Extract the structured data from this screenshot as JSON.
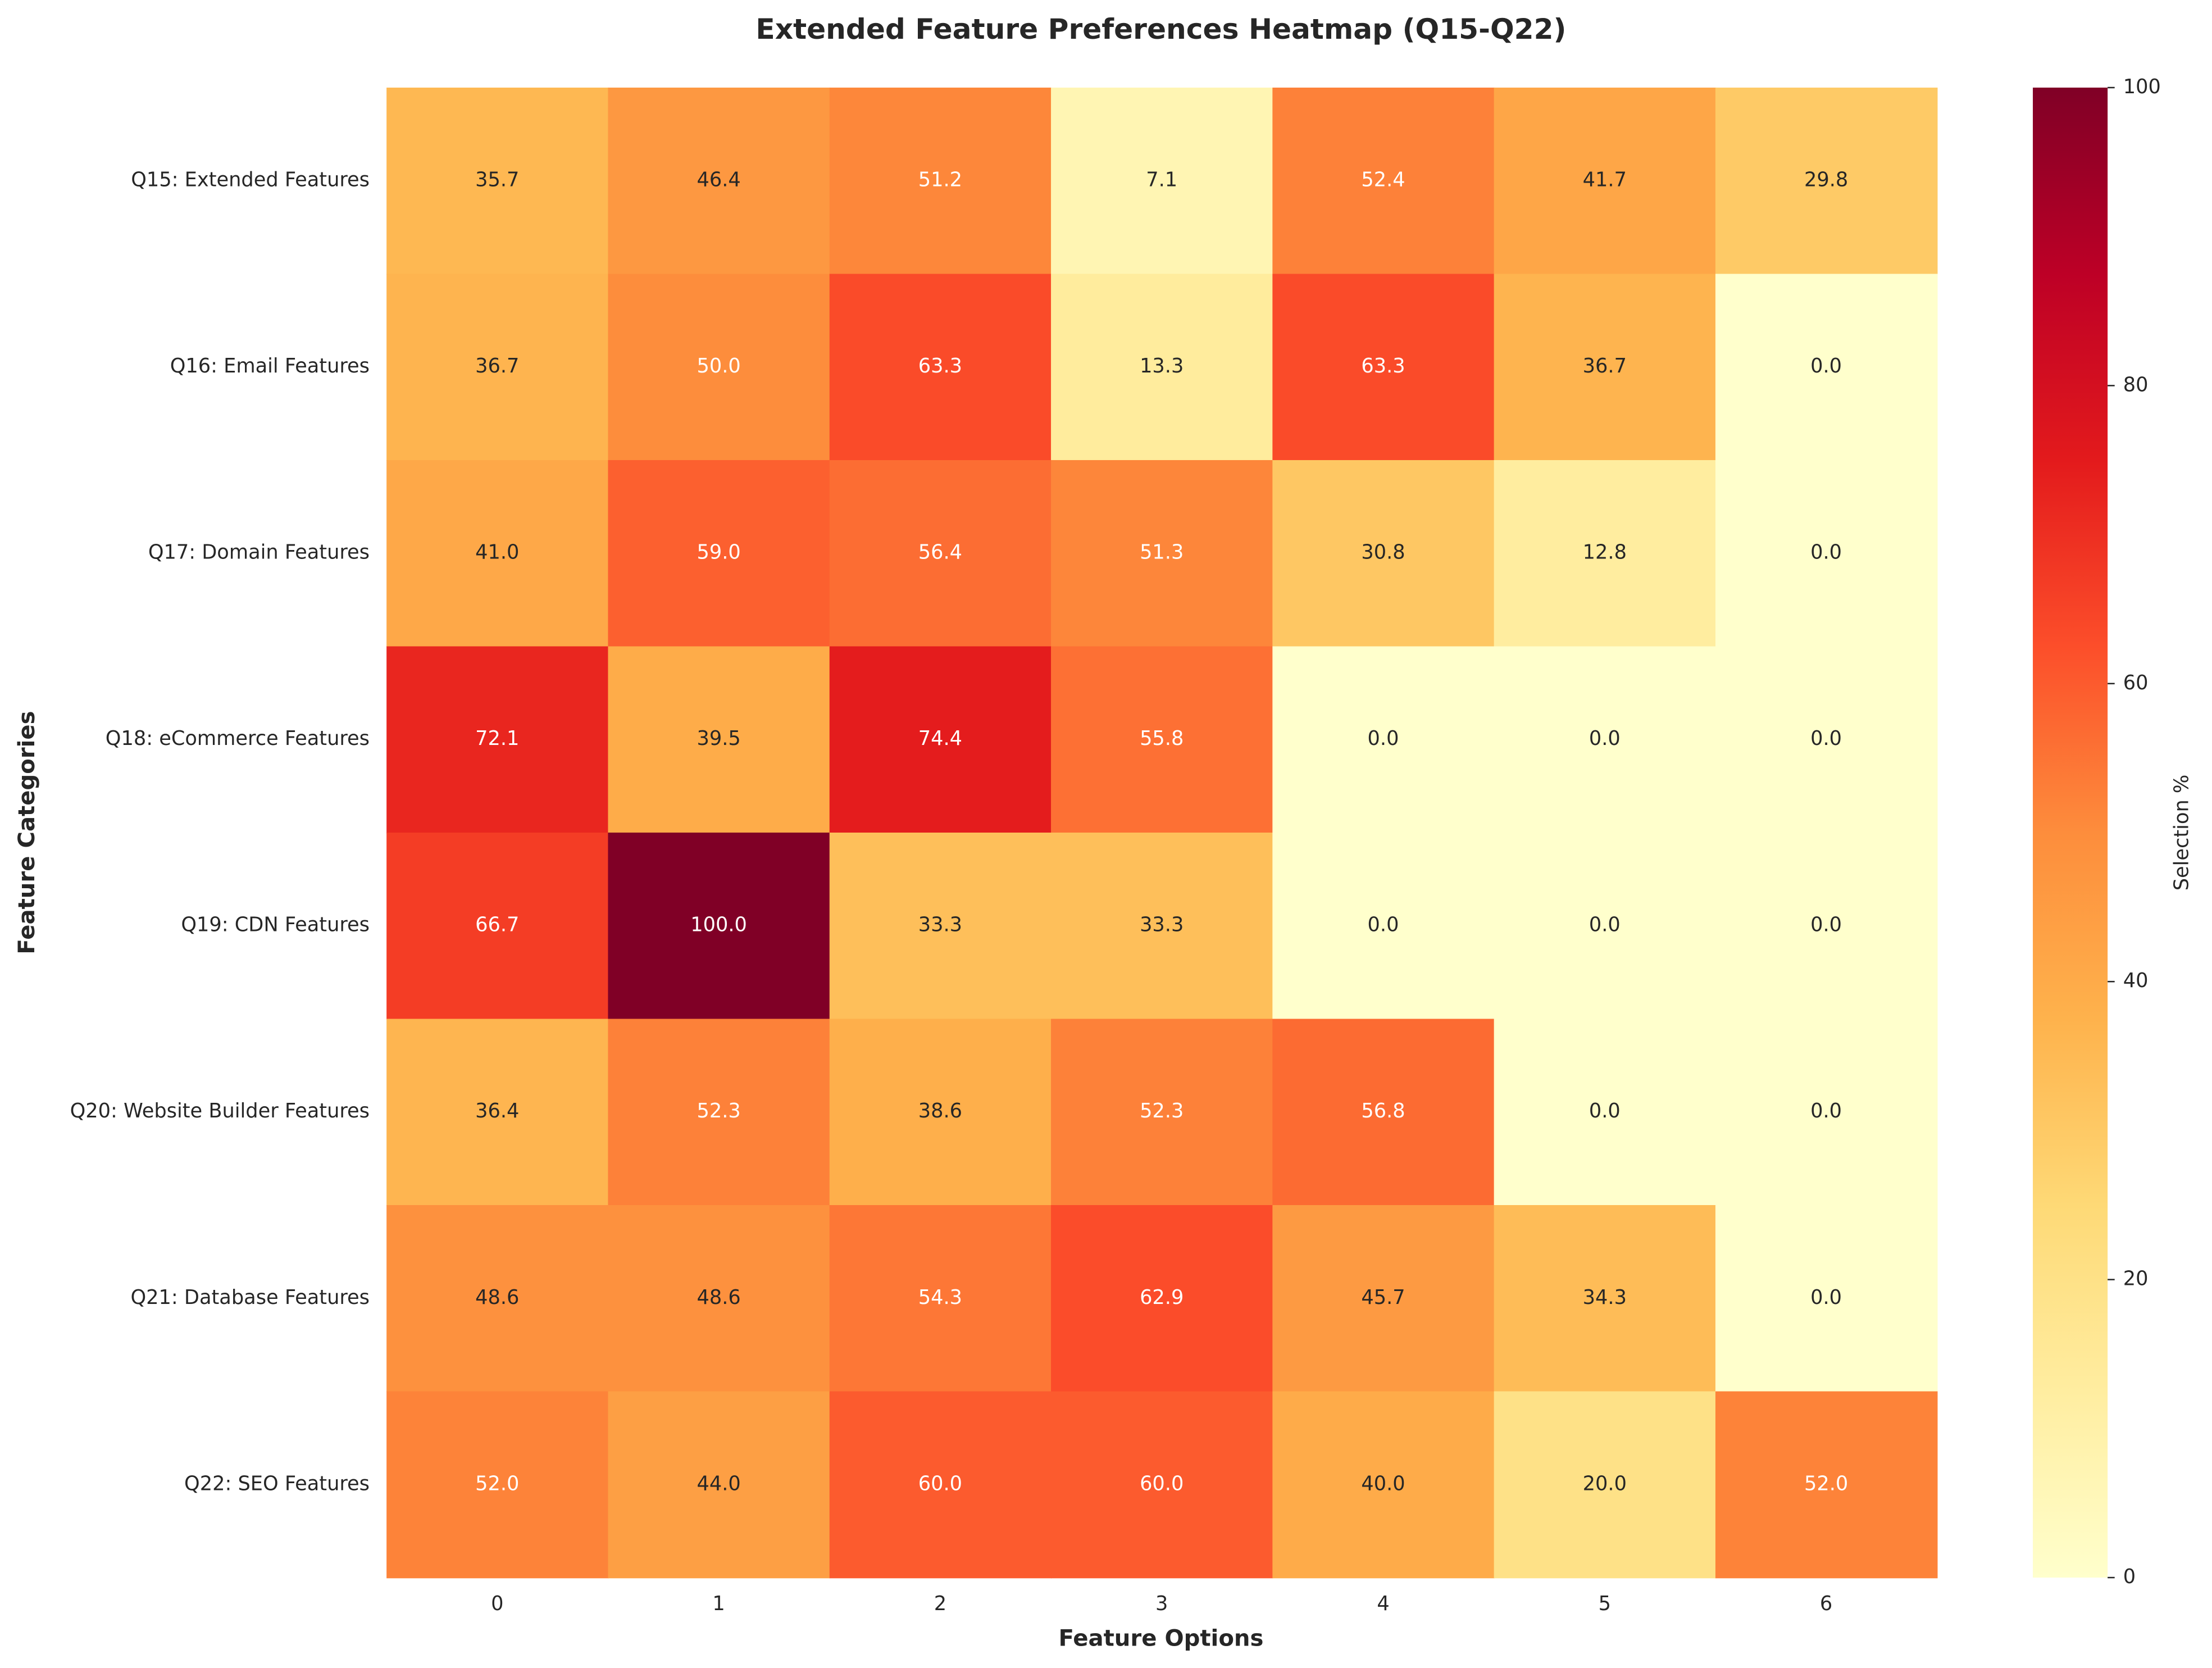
{
  "chart_data": {
    "type": "heatmap",
    "title": "Extended Feature Preferences Heatmap (Q15-Q22)",
    "x_label": "Feature Options",
    "y_label": "Feature Categories",
    "categories": [
      "0",
      "1",
      "2",
      "3",
      "4",
      "5",
      "6"
    ],
    "rows": [
      "Q15: Extended Features",
      "Q16: Email Features",
      "Q17: Domain Features",
      "Q18: eCommerce Features",
      "Q19: CDN Features",
      "Q20: Website Builder Features",
      "Q21: Database Features",
      "Q22: SEO Features"
    ],
    "values": [
      [
        35.7,
        46.4,
        51.2,
        7.1,
        52.4,
        41.7,
        29.8
      ],
      [
        36.7,
        50,
        63.3,
        13.3,
        63.3,
        36.7,
        0
      ],
      [
        41,
        59,
        56.4,
        51.3,
        30.8,
        12.8,
        0
      ],
      [
        72.1,
        39.5,
        74.4,
        55.8,
        0,
        0,
        0
      ],
      [
        66.7,
        100,
        33.3,
        33.3,
        0,
        0,
        0
      ],
      [
        36.4,
        52.3,
        38.6,
        52.3,
        56.8,
        0,
        0
      ],
      [
        48.6,
        48.6,
        54.3,
        62.9,
        45.7,
        34.3,
        0
      ],
      [
        52,
        44,
        60,
        60,
        40,
        20,
        52
      ]
    ],
    "value_labels": [
      [
        "35.7",
        "46.4",
        "51.2",
        "7.1",
        "52.4",
        "41.7",
        "29.8"
      ],
      [
        "36.7",
        "50.0",
        "63.3",
        "13.3",
        "63.3",
        "36.7",
        "0.0"
      ],
      [
        "41.0",
        "59.0",
        "56.4",
        "51.3",
        "30.8",
        "12.8",
        "0.0"
      ],
      [
        "72.1",
        "39.5",
        "74.4",
        "55.8",
        "0.0",
        "0.0",
        "0.0"
      ],
      [
        "66.7",
        "100.0",
        "33.3",
        "33.3",
        "0.0",
        "0.0",
        "0.0"
      ],
      [
        "36.4",
        "52.3",
        "38.6",
        "52.3",
        "56.8",
        "0.0",
        "0.0"
      ],
      [
        "48.6",
        "48.6",
        "54.3",
        "62.9",
        "45.7",
        "34.3",
        "0.0"
      ],
      [
        "52.0",
        "44.0",
        "60.0",
        "60.0",
        "40.0",
        "20.0",
        "52.0"
      ]
    ],
    "colormap": "YlOrRd",
    "clim": [
      0,
      100
    ],
    "cticks": [
      0,
      20,
      40,
      60,
      80,
      100
    ],
    "colorbar_label": "Selection %"
  }
}
